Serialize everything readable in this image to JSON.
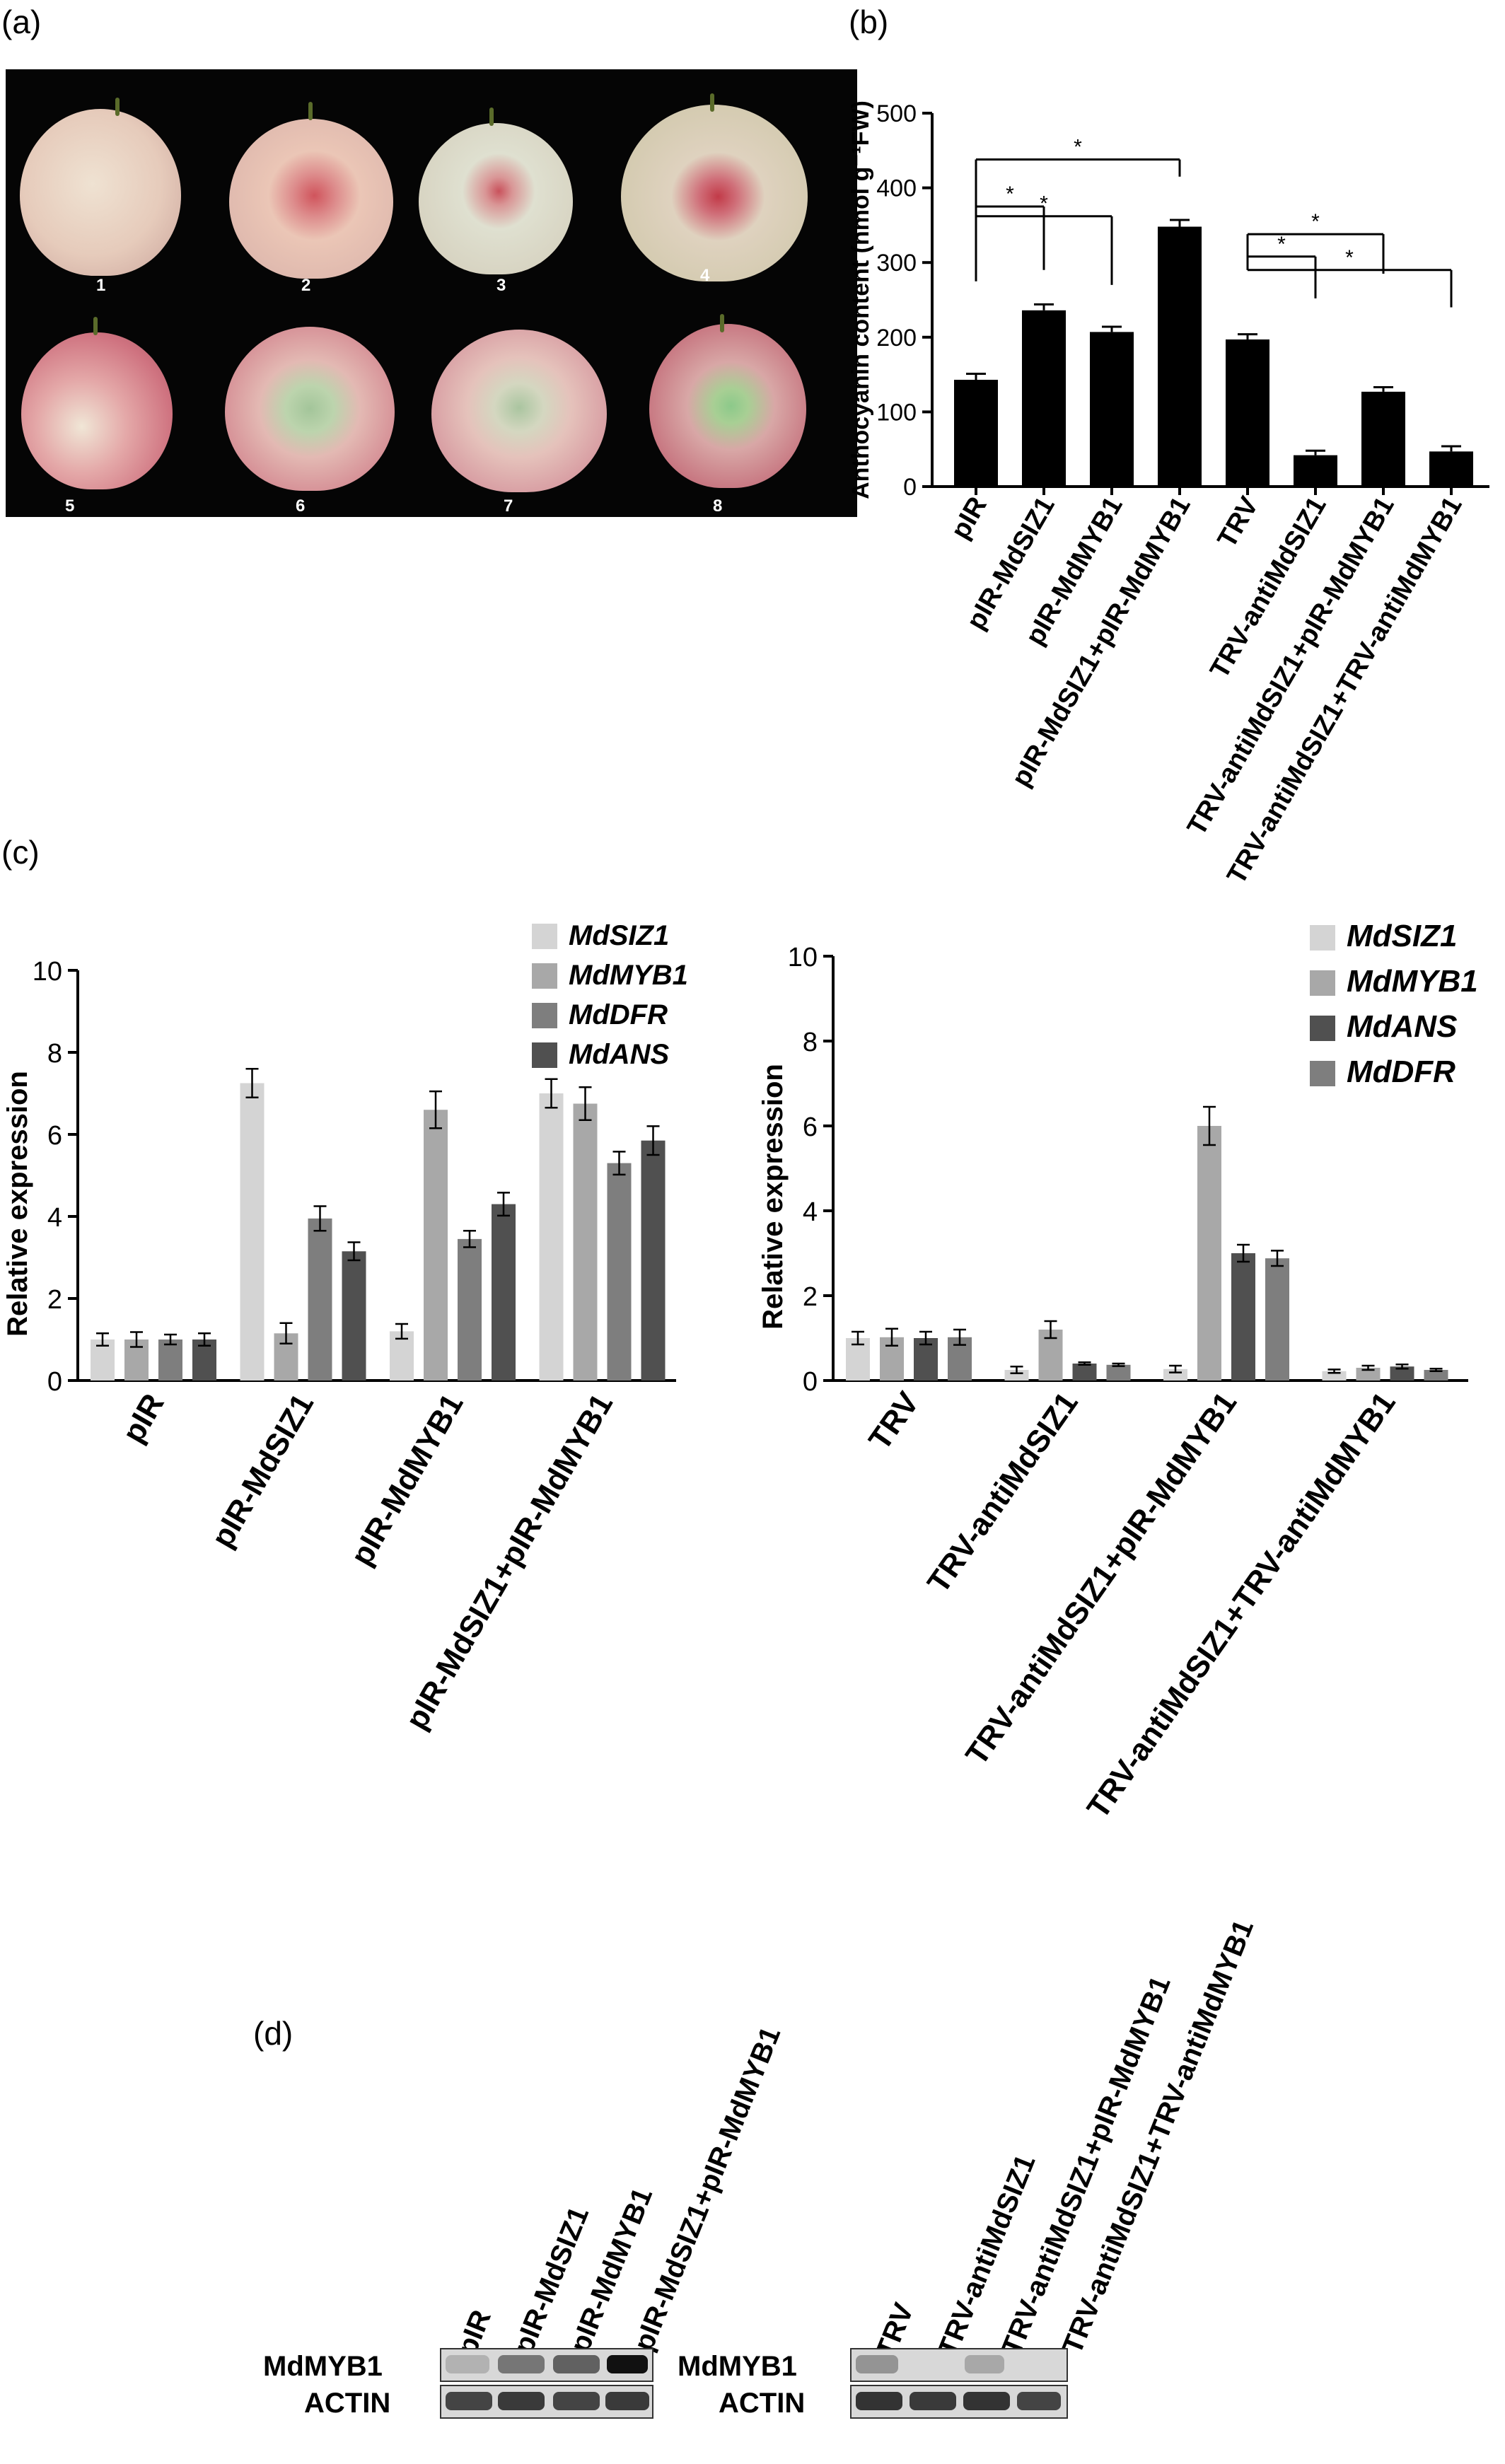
{
  "panels": {
    "a": "(a)",
    "b": "(b)",
    "c": "(c)",
    "d": "(d)"
  },
  "photo": {
    "numbers": [
      "1",
      "2",
      "3",
      "4",
      "5",
      "6",
      "7",
      "8"
    ]
  },
  "chart_data": [
    {
      "id": "b",
      "type": "bar",
      "ylabel": "Anthocyanin content (nmol g⁻¹FW)",
      "ylim": [
        0,
        500
      ],
      "yticks": [
        0,
        100,
        200,
        300,
        400,
        500
      ],
      "categories": [
        "pIR",
        "pIR-MdSIZ1",
        "pIR-MdMYB1",
        "pIR-MdSIZ1+pIR-MdMYB1",
        "TRV",
        "TRV-antiMdSIZ1",
        "TRV-antiMdSIZ1+pIR-MdMYB1",
        "TRV-antiMdSIZ1+TRV-antiMdMYB1"
      ],
      "values": [
        143,
        236,
        207,
        348,
        197,
        42,
        127,
        47
      ],
      "errors": [
        8,
        8,
        7,
        9,
        7,
        6,
        6,
        7
      ],
      "significance_marker": "*",
      "color": "#000000"
    },
    {
      "id": "c-left",
      "type": "bar",
      "ylabel": "Relative expression",
      "ylim": [
        0,
        10
      ],
      "yticks": [
        0,
        2,
        4,
        6,
        8,
        10
      ],
      "categories": [
        "pIR",
        "pIR-MdSIZ1",
        "pIR-MdMYB1",
        "pIR-MdSIZ1+pIR-MdMYB1"
      ],
      "series": [
        {
          "name": "MdSIZ1",
          "color": "#d4d4d4",
          "values": [
            1.0,
            7.25,
            1.2,
            7.0
          ],
          "errors": [
            0.15,
            0.35,
            0.18,
            0.35
          ]
        },
        {
          "name": "MdMYB1",
          "color": "#a8a8a8",
          "values": [
            1.0,
            1.15,
            6.6,
            6.75
          ],
          "errors": [
            0.18,
            0.25,
            0.45,
            0.4
          ]
        },
        {
          "name": "MdDFR",
          "color": "#7e7e7e",
          "values": [
            1.0,
            3.95,
            3.45,
            5.3
          ],
          "errors": [
            0.12,
            0.3,
            0.2,
            0.28
          ]
        },
        {
          "name": "MdANS",
          "color": "#505050",
          "values": [
            1.0,
            3.15,
            4.3,
            5.85
          ],
          "errors": [
            0.15,
            0.22,
            0.28,
            0.35
          ]
        }
      ]
    },
    {
      "id": "c-right",
      "type": "bar",
      "ylabel": "Relative expression",
      "ylim": [
        0,
        10
      ],
      "yticks": [
        0,
        2,
        4,
        6,
        8,
        10
      ],
      "categories": [
        "TRV",
        "TRV-antiMdSIZ1",
        "TRV-antiMdSIZ1+pIR-MdMYB1",
        "TRV-antiMdSIZ1+TRV-antiMdMYB1"
      ],
      "series": [
        {
          "name": "MdSIZ1",
          "color": "#d4d4d4",
          "values": [
            1.0,
            0.25,
            0.27,
            0.22
          ],
          "errors": [
            0.15,
            0.08,
            0.08,
            0.04
          ]
        },
        {
          "name": "MdMYB1",
          "color": "#a8a8a8",
          "values": [
            1.02,
            1.2,
            6.0,
            0.3
          ],
          "errors": [
            0.2,
            0.2,
            0.45,
            0.05
          ]
        },
        {
          "name": "MdANS",
          "color": "#505050",
          "values": [
            1.0,
            0.4,
            3.0,
            0.33
          ],
          "errors": [
            0.15,
            0.03,
            0.2,
            0.05
          ]
        },
        {
          "name": "MdDFR",
          "color": "#7e7e7e",
          "values": [
            1.02,
            0.37,
            2.88,
            0.25
          ],
          "errors": [
            0.18,
            0.03,
            0.18,
            0.03
          ]
        }
      ]
    }
  ],
  "blots": {
    "left_lanes": [
      "pIR",
      "pIR-MdSIZ1",
      "pIR-MdMYB1",
      "pIR-MdSIZ1+pIR-MdMYB1"
    ],
    "right_lanes": [
      "TRV",
      "TRV-antiMdSIZ1",
      "TRV-antiMdSIZ1+pIR-MdMYB1",
      "TRV-antiMdSIZ1+TRV-antiMdMYB1"
    ],
    "row_labels": [
      "MdMYB1",
      "ACTIN"
    ]
  }
}
